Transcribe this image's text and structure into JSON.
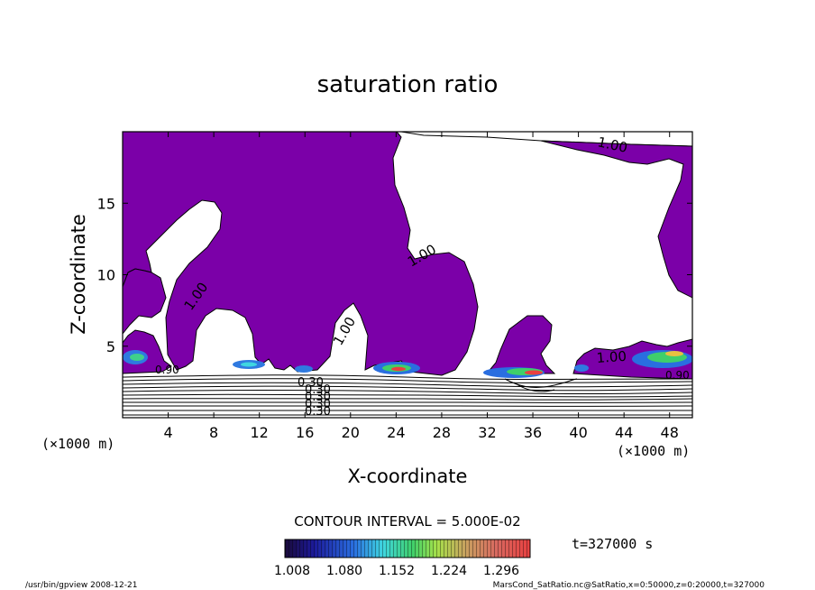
{
  "chart_data": {
    "type": "heatmap",
    "title": "saturation ratio",
    "xlabel": "X-coordinate",
    "ylabel": "Z-coordinate",
    "x_unit_label": "(×1000 m)",
    "y_unit_label": "(×1000 m)",
    "xlim": [
      0,
      50
    ],
    "ylim": [
      0,
      20
    ],
    "x_ticks": [
      4,
      8,
      12,
      16,
      20,
      24,
      28,
      32,
      36,
      40,
      44,
      48
    ],
    "y_ticks": [
      5,
      10,
      15
    ],
    "grid": false,
    "contour_interval_text": "CONTOUR INTERVAL = 5.000E-02",
    "time_text": "t=327000  s",
    "contour_labels": [
      "1.00",
      "1.00",
      "1.00",
      "1.00",
      "1.00",
      "0.90",
      "0.90",
      "0.30",
      "0.30",
      "0.30",
      "0.30",
      "0.30"
    ],
    "colorbar": {
      "ticks": [
        "1.008",
        "1.080",
        "1.152",
        "1.224",
        "1.296"
      ],
      "range": [
        1.0,
        1.3
      ]
    },
    "colors": {
      "supersaturated_fill": "#7b00a8",
      "low": "#1a1a9c",
      "mid": "#2fbf5a",
      "high": "#e8262a"
    }
  },
  "footer": {
    "left": "/usr/bin/gpview   2008-12-21",
    "right": "MarsCond_SatRatio.nc@SatRatio,x=0:50000,z=0:20000,t=327000"
  }
}
